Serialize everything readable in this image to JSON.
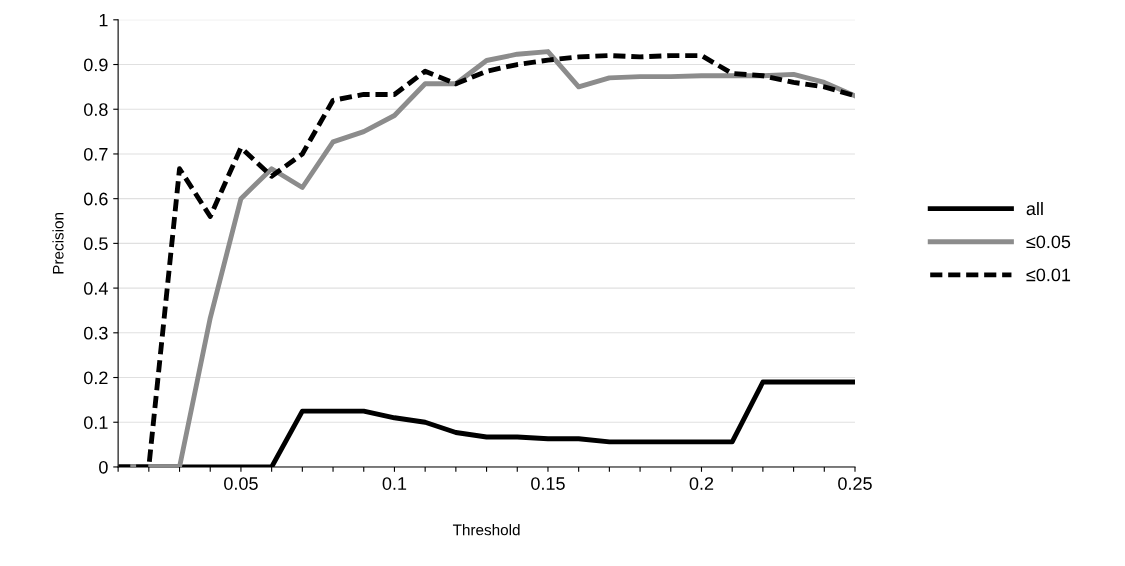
{
  "chart_data": {
    "type": "line",
    "xlabel": "Threshold",
    "ylabel": "Precision",
    "x": [
      0.01,
      0.02,
      0.03,
      0.04,
      0.05,
      0.06,
      0.07,
      0.08,
      0.09,
      0.1,
      0.11,
      0.12,
      0.13,
      0.14,
      0.15,
      0.16,
      0.17,
      0.18,
      0.19,
      0.2,
      0.21,
      0.22,
      0.23,
      0.24,
      0.25
    ],
    "series": [
      {
        "name": "all",
        "color": "#000000",
        "line_style": "solid",
        "values": [
          0,
          0,
          0,
          0,
          0,
          0,
          0.125,
          0.125,
          0.125,
          0.11,
          0.1,
          0.077,
          0.067,
          0.067,
          0.063,
          0.063,
          0.056,
          0.056,
          0.056,
          0.056,
          0.056,
          0.19,
          0.19,
          0.19,
          0.19
        ]
      },
      {
        "name": "≤0.05",
        "color": "#8c8c8c",
        "line_style": "solid",
        "values": [
          0,
          0,
          0,
          0.333,
          0.6,
          0.667,
          0.625,
          0.727,
          0.75,
          0.786,
          0.857,
          0.857,
          0.909,
          0.923,
          0.929,
          0.85,
          0.87,
          0.873,
          0.873,
          0.875,
          0.875,
          0.875,
          0.878,
          0.86,
          0.83
        ]
      },
      {
        "name": "≤0.01",
        "color": "#000000",
        "line_style": "dashed",
        "values": [
          0,
          0,
          0.667,
          0.56,
          0.714,
          0.65,
          0.7,
          0.82,
          0.833,
          0.833,
          0.885,
          0.857,
          0.885,
          0.9,
          0.91,
          0.917,
          0.92,
          0.917,
          0.92,
          0.92,
          0.88,
          0.875,
          0.86,
          0.85,
          0.83
        ]
      }
    ],
    "xlim": [
      0.01,
      0.25
    ],
    "xticks": [
      {
        "value": 0.01,
        "label": null
      },
      {
        "value": 0.02,
        "label": null
      },
      {
        "value": 0.03,
        "label": null
      },
      {
        "value": 0.04,
        "label": null
      },
      0.05,
      {
        "value": 0.06,
        "label": null
      },
      {
        "value": 0.07,
        "label": null
      },
      {
        "value": 0.08,
        "label": null
      },
      {
        "value": 0.09,
        "label": null
      },
      0.1,
      {
        "value": 0.11,
        "label": null
      },
      {
        "value": 0.12,
        "label": null
      },
      {
        "value": 0.13,
        "label": null
      },
      {
        "value": 0.14,
        "label": null
      },
      0.15,
      {
        "value": 0.16,
        "label": null
      },
      {
        "value": 0.17,
        "label": null
      },
      {
        "value": 0.18,
        "label": null
      },
      {
        "value": 0.19,
        "label": null
      },
      0.2,
      {
        "value": 0.21,
        "label": null
      },
      {
        "value": 0.22,
        "label": null
      },
      {
        "value": 0.23,
        "label": null
      },
      {
        "value": 0.24,
        "label": null
      },
      0.25
    ],
    "ylim": [
      0,
      1
    ],
    "yticks": [
      0,
      0.1,
      0.2,
      0.3,
      0.4,
      0.5,
      0.6,
      0.7,
      0.8,
      0.9,
      1
    ],
    "grid": "y",
    "legend": "right",
    "marker": "none"
  }
}
